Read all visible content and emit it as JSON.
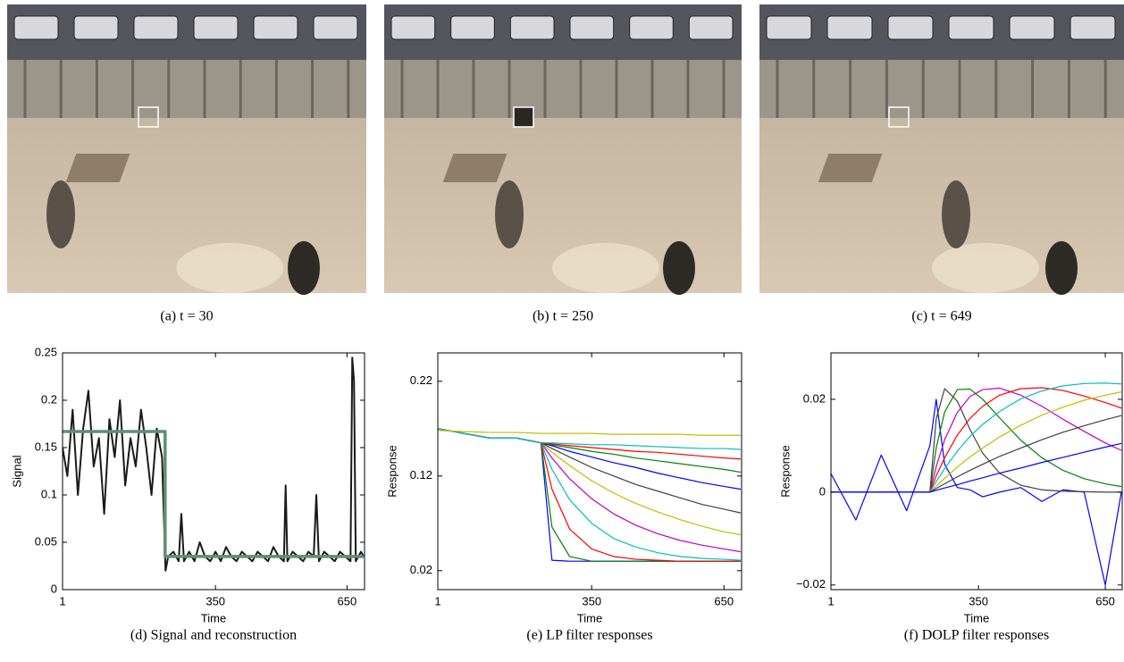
{
  "figures": [
    {
      "caption": "(a) t = 30"
    },
    {
      "caption": "(b) t = 250"
    },
    {
      "caption": "(c) t = 649"
    }
  ],
  "chart_data": [
    {
      "type": "line",
      "caption": "(d) Signal and reconstruction",
      "xlabel": "Time",
      "ylabel": "Signal",
      "xlim": [
        1,
        690
      ],
      "xticks": [
        1,
        350,
        650
      ],
      "ylim": [
        0,
        0.25
      ],
      "yticks": [
        0,
        0.05,
        0.1,
        0.15,
        0.2,
        0.25
      ],
      "series": [
        {
          "color": "#1a1a1a",
          "width": 2,
          "x": [
            1,
            12,
            24,
            36,
            48,
            60,
            72,
            84,
            96,
            108,
            120,
            132,
            144,
            156,
            168,
            180,
            192,
            204,
            216,
            228,
            236,
            242,
            254,
            266,
            272,
            278,
            290,
            302,
            314,
            326,
            338,
            350,
            362,
            374,
            386,
            398,
            410,
            422,
            434,
            446,
            458,
            470,
            482,
            494,
            506,
            510,
            514,
            526,
            538,
            550,
            562,
            574,
            580,
            586,
            598,
            610,
            622,
            634,
            646,
            658,
            662,
            666,
            670,
            682,
            688
          ],
          "values": [
            0.15,
            0.12,
            0.19,
            0.1,
            0.17,
            0.21,
            0.13,
            0.16,
            0.08,
            0.18,
            0.14,
            0.2,
            0.11,
            0.16,
            0.13,
            0.19,
            0.15,
            0.1,
            0.17,
            0.14,
            0.02,
            0.035,
            0.04,
            0.03,
            0.08,
            0.03,
            0.04,
            0.03,
            0.05,
            0.035,
            0.03,
            0.04,
            0.03,
            0.045,
            0.035,
            0.03,
            0.04,
            0.035,
            0.03,
            0.04,
            0.035,
            0.03,
            0.045,
            0.035,
            0.03,
            0.11,
            0.03,
            0.04,
            0.035,
            0.03,
            0.04,
            0.035,
            0.1,
            0.03,
            0.04,
            0.035,
            0.03,
            0.04,
            0.035,
            0.03,
            0.245,
            0.22,
            0.03,
            0.04,
            0.035
          ]
        },
        {
          "color": "#5f8f6f",
          "width": 3.5,
          "x": [
            1,
            235,
            235,
            688
          ],
          "values": [
            0.167,
            0.167,
            0.035,
            0.035
          ]
        }
      ]
    },
    {
      "type": "line",
      "caption": "(e) LP filter responses",
      "xlabel": "Time",
      "ylabel": "Response",
      "xlim": [
        1,
        690
      ],
      "xticks": [
        1,
        350,
        650
      ],
      "ylim": [
        0,
        0.25
      ],
      "yticks": [
        0.02,
        0.12,
        0.22
      ],
      "x": [
        1,
        60,
        120,
        180,
        235,
        260,
        300,
        350,
        400,
        450,
        500,
        550,
        600,
        650,
        688
      ],
      "series": [
        {
          "color": "#0000ff",
          "values": [
            0.17,
            0.165,
            0.16,
            0.16,
            0.155,
            0.031,
            0.03,
            0.03,
            0.03,
            0.03,
            0.03,
            0.03,
            0.03,
            0.03,
            0.03
          ]
        },
        {
          "color": "#008000",
          "values": [
            0.17,
            0.165,
            0.16,
            0.16,
            0.155,
            0.066,
            0.035,
            0.03,
            0.03,
            0.03,
            0.03,
            0.03,
            0.03,
            0.03,
            0.03
          ]
        },
        {
          "color": "#ff0000",
          "values": [
            0.17,
            0.165,
            0.16,
            0.16,
            0.155,
            0.106,
            0.064,
            0.043,
            0.035,
            0.032,
            0.031,
            0.03,
            0.03,
            0.03,
            0.03
          ]
        },
        {
          "color": "#00bfbf",
          "values": [
            0.17,
            0.165,
            0.16,
            0.16,
            0.155,
            0.127,
            0.095,
            0.07,
            0.054,
            0.045,
            0.039,
            0.035,
            0.033,
            0.032,
            0.031
          ]
        },
        {
          "color": "#bf00bf",
          "values": [
            0.17,
            0.165,
            0.16,
            0.16,
            0.155,
            0.139,
            0.117,
            0.096,
            0.08,
            0.068,
            0.059,
            0.052,
            0.047,
            0.043,
            0.04
          ]
        },
        {
          "color": "#bfbf00",
          "values": [
            0.17,
            0.165,
            0.16,
            0.16,
            0.155,
            0.145,
            0.131,
            0.115,
            0.102,
            0.091,
            0.082,
            0.074,
            0.067,
            0.061,
            0.058
          ]
        },
        {
          "color": "#404040",
          "values": [
            0.17,
            0.165,
            0.16,
            0.16,
            0.155,
            0.149,
            0.14,
            0.129,
            0.12,
            0.111,
            0.104,
            0.097,
            0.09,
            0.085,
            0.081
          ]
        },
        {
          "color": "#0000ff",
          "values": [
            0.17,
            0.165,
            0.16,
            0.16,
            0.155,
            0.152,
            0.146,
            0.14,
            0.134,
            0.129,
            0.123,
            0.118,
            0.113,
            0.109,
            0.106
          ]
        },
        {
          "color": "#008000",
          "values": [
            0.17,
            0.165,
            0.16,
            0.16,
            0.155,
            0.153,
            0.15,
            0.146,
            0.143,
            0.139,
            0.136,
            0.133,
            0.13,
            0.127,
            0.124
          ]
        },
        {
          "color": "#ff0000",
          "values": [
            0.17,
            0.165,
            0.16,
            0.16,
            0.155,
            0.154,
            0.152,
            0.15,
            0.148,
            0.146,
            0.145,
            0.143,
            0.141,
            0.139,
            0.138
          ]
        },
        {
          "color": "#00bfbf",
          "values": [
            0.17,
            0.165,
            0.16,
            0.16,
            0.155,
            0.155,
            0.154,
            0.153,
            0.153,
            0.152,
            0.151,
            0.15,
            0.149,
            0.149,
            0.148
          ]
        },
        {
          "color": "#bfbf00",
          "values": [
            0.168,
            0.167,
            0.166,
            0.166,
            0.165,
            0.165,
            0.165,
            0.165,
            0.164,
            0.164,
            0.164,
            0.164,
            0.163,
            0.163,
            0.163
          ]
        }
      ]
    },
    {
      "type": "line",
      "caption": "(f) DOLP filter responses",
      "xlabel": "Time",
      "ylabel": "Response",
      "xlim": [
        1,
        690
      ],
      "xticks": [
        1,
        350,
        650
      ],
      "ylim": [
        -0.021,
        0.03
      ],
      "yticks": [
        {
          "value": -0.02,
          "label": "−0.02"
        },
        0,
        0.02
      ],
      "x": [
        1,
        60,
        120,
        180,
        235,
        250,
        270,
        300,
        330,
        360,
        400,
        450,
        500,
        550,
        600,
        650,
        688
      ],
      "series": [
        {
          "color": "#0000ff",
          "values": [
            0.004,
            -0.006,
            0.008,
            -0.004,
            0.01,
            0.02,
            0.006,
            0.001,
            0.0005,
            -0.001,
            0,
            0.001,
            -0.002,
            0.0005,
            0,
            -0.02,
            0
          ]
        },
        {
          "color": "#404040",
          "values": [
            0,
            0,
            0,
            0,
            0,
            0.0158,
            0.0223,
            0.0196,
            0.0135,
            0.0084,
            0.0041,
            0.0015,
            0.0005,
            0.0002,
            0.0001,
            0,
            0
          ]
        },
        {
          "color": "#008000",
          "values": [
            0,
            0,
            0,
            0,
            0,
            0.0095,
            0.0173,
            0.0221,
            0.0222,
            0.02,
            0.016,
            0.0112,
            0.0074,
            0.0047,
            0.0029,
            0.0018,
            0.0012
          ]
        },
        {
          "color": "#bf00bf",
          "values": [
            0,
            0,
            0,
            0,
            0,
            0.0055,
            0.0113,
            0.0172,
            0.0206,
            0.0221,
            0.0224,
            0.0209,
            0.0185,
            0.0157,
            0.0131,
            0.0106,
            0.009
          ]
        },
        {
          "color": "#ff0000",
          "values": [
            0,
            0,
            0,
            0,
            0,
            0.0035,
            0.0074,
            0.0123,
            0.0159,
            0.0185,
            0.0209,
            0.0223,
            0.0225,
            0.0219,
            0.0207,
            0.0193,
            0.0181
          ]
        },
        {
          "color": "#00bfbf",
          "values": [
            0,
            0,
            0,
            0,
            0,
            0.0023,
            0.0051,
            0.0088,
            0.012,
            0.0146,
            0.0174,
            0.0201,
            0.0218,
            0.0229,
            0.0234,
            0.0235,
            0.0233
          ]
        },
        {
          "color": "#bfbf00",
          "values": [
            0,
            0,
            0,
            0,
            0,
            0.0013,
            0.003,
            0.0054,
            0.0076,
            0.0095,
            0.0119,
            0.0144,
            0.0166,
            0.0183,
            0.0198,
            0.0209,
            0.0216
          ]
        },
        {
          "color": "#404040",
          "values": [
            0,
            0,
            0,
            0,
            0,
            0.0008,
            0.0018,
            0.0033,
            0.0047,
            0.006,
            0.0077,
            0.0095,
            0.0113,
            0.0129,
            0.0143,
            0.0156,
            0.0165
          ]
        },
        {
          "color": "#0000ff",
          "values": [
            0,
            0,
            0,
            0,
            0,
            0.0004,
            0.0009,
            0.0016,
            0.0024,
            0.0031,
            0.0041,
            0.0052,
            0.0064,
            0.0075,
            0.0086,
            0.0097,
            0.0105
          ]
        }
      ]
    }
  ]
}
